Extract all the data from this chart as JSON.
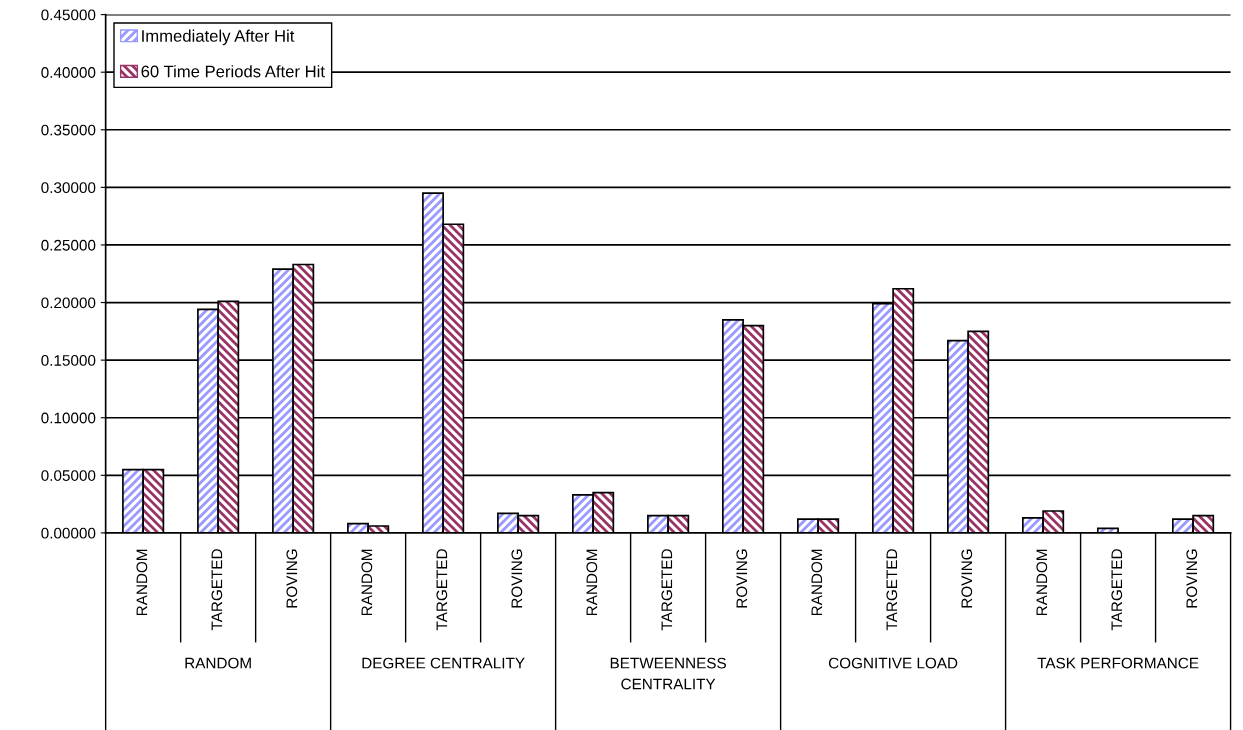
{
  "chart_data": {
    "type": "bar",
    "categories": [
      "RANDOM",
      "TARGETED",
      "ROVING",
      "RANDOM",
      "TARGETED",
      "ROVING",
      "RANDOM",
      "TARGETED",
      "ROVING",
      "RANDOM",
      "TARGETED",
      "ROVING",
      "RANDOM",
      "TARGETED",
      "ROVING"
    ],
    "series": [
      {
        "name": "Immediately After Hit",
        "color": "#9999ff",
        "values": [
          0.055,
          0.194,
          0.229,
          0.008,
          0.295,
          0.017,
          0.033,
          0.015,
          0.185,
          0.012,
          0.199,
          0.167,
          0.013,
          0.004,
          0.012
        ]
      },
      {
        "name": "60 Time Periods After Hit",
        "color": "#993366",
        "values": [
          0.055,
          0.201,
          0.233,
          0.006,
          0.268,
          0.015,
          0.035,
          0.015,
          0.18,
          0.012,
          0.212,
          0.175,
          0.019,
          null,
          0.015
        ]
      }
    ],
    "annotations": [
      "RANDOM",
      "DEGREE CENTRALITY",
      "BETWEENNESS\nCENTRALITY",
      "COGNITIVE LOAD",
      "TASK PERFORMANCE"
    ],
    "ylim": [
      0,
      0.45
    ],
    "yticks": [
      {
        "value": 0,
        "label": "0.00000"
      },
      {
        "value": 0.05,
        "label": "0.05000"
      },
      {
        "value": 0.1,
        "label": "0.10000"
      },
      {
        "value": 0.15,
        "label": "0.15000"
      },
      {
        "value": 0.2,
        "label": "0.20000"
      },
      {
        "value": 0.25,
        "label": "0.25000"
      },
      {
        "value": 0.3,
        "label": "0.30000"
      },
      {
        "value": 0.35,
        "label": "0.35000"
      },
      {
        "value": 0.4,
        "label": "0.40000"
      },
      {
        "value": 0.45,
        "label": "0.45000"
      }
    ],
    "grid": "y",
    "legend": "top left"
  }
}
